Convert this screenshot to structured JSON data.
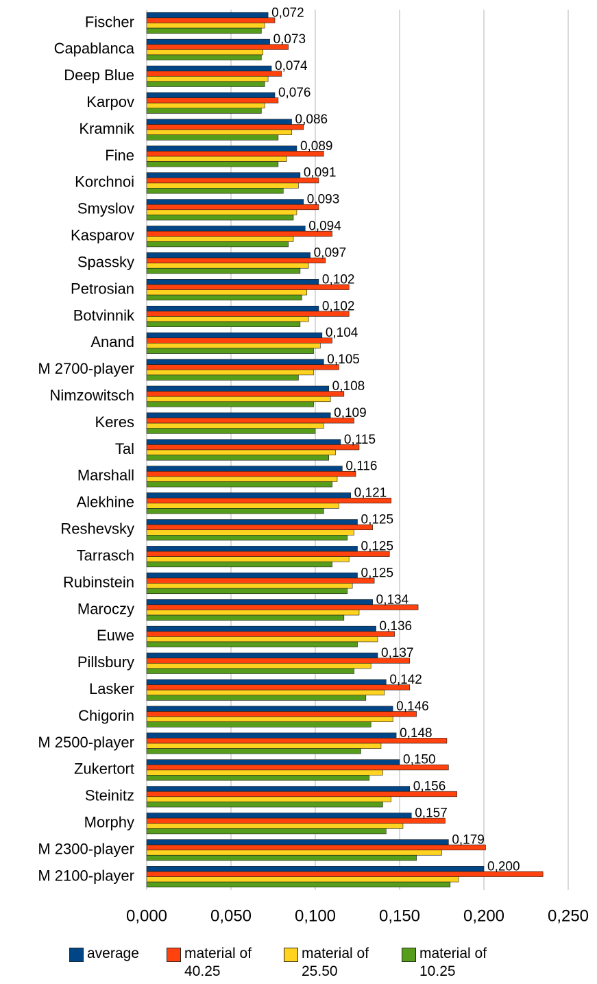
{
  "chart_data": {
    "type": "barh",
    "categories": [
      "Fischer",
      "Capablanca",
      "Deep Blue",
      "Karpov",
      "Kramnik",
      "Fine",
      "Korchnoi",
      "Smyslov",
      "Kasparov",
      "Spassky",
      "Petrosian",
      "Botvinnik",
      "Anand",
      "M 2700-player",
      "Nimzowitsch",
      "Keres",
      "Tal",
      "Marshall",
      "Alekhine",
      "Reshevsky",
      "Tarrasch",
      "Rubinstein",
      "Maroczy",
      "Euwe",
      "Pillsbury",
      "Lasker",
      "Chigorin",
      "M 2500-player",
      "Zukertort",
      "Steinitz",
      "Morphy",
      "M 2300-player",
      "M 2100-player"
    ],
    "series": [
      {
        "name": "average",
        "color": "#004586",
        "values": [
          0.072,
          0.073,
          0.074,
          0.076,
          0.086,
          0.089,
          0.091,
          0.093,
          0.094,
          0.097,
          0.102,
          0.102,
          0.104,
          0.105,
          0.108,
          0.109,
          0.115,
          0.116,
          0.121,
          0.125,
          0.125,
          0.125,
          0.134,
          0.136,
          0.137,
          0.142,
          0.146,
          0.148,
          0.15,
          0.156,
          0.157,
          0.179,
          0.2
        ],
        "value_labels": [
          "0,072",
          "0,073",
          "0,074",
          "0,076",
          "0,086",
          "0,089",
          "0,091",
          "0,093",
          "0,094",
          "0,097",
          "0,102",
          "0,102",
          "0,104",
          "0,105",
          "0,108",
          "0,109",
          "0,115",
          "0,116",
          "0,121",
          "0,125",
          "0,125",
          "0,125",
          "0,134",
          "0,136",
          "0,137",
          "0,142",
          "0,146",
          "0,148",
          "0,150",
          "0,156",
          "0,157",
          "0,179",
          "0,200"
        ]
      },
      {
        "name": "material of 40.25",
        "color": "#ff420e",
        "values": [
          0.076,
          0.084,
          0.08,
          0.078,
          0.093,
          0.105,
          0.102,
          0.102,
          0.11,
          0.106,
          0.12,
          0.12,
          0.11,
          0.114,
          0.117,
          0.123,
          0.126,
          0.124,
          0.145,
          0.134,
          0.144,
          0.135,
          0.161,
          0.147,
          0.156,
          0.156,
          0.16,
          0.178,
          0.179,
          0.184,
          0.177,
          0.201,
          0.235
        ]
      },
      {
        "name": "material of 25.50",
        "color": "#ffd320",
        "values": [
          0.07,
          0.069,
          0.072,
          0.07,
          0.086,
          0.083,
          0.09,
          0.089,
          0.087,
          0.096,
          0.095,
          0.096,
          0.103,
          0.099,
          0.109,
          0.105,
          0.112,
          0.113,
          0.114,
          0.123,
          0.12,
          0.122,
          0.126,
          0.137,
          0.133,
          0.141,
          0.146,
          0.139,
          0.14,
          0.145,
          0.152,
          0.175,
          0.185
        ]
      },
      {
        "name": "material of 10.25",
        "color": "#579d1c",
        "values": [
          0.068,
          0.068,
          0.07,
          0.068,
          0.078,
          0.078,
          0.081,
          0.087,
          0.084,
          0.091,
          0.092,
          0.091,
          0.099,
          0.09,
          0.099,
          0.1,
          0.108,
          0.11,
          0.105,
          0.119,
          0.11,
          0.119,
          0.117,
          0.125,
          0.123,
          0.13,
          0.133,
          0.127,
          0.132,
          0.14,
          0.142,
          0.16,
          0.18
        ]
      }
    ],
    "xlim": [
      0,
      0.25
    ],
    "xticks": [
      {
        "value": 0,
        "label": "0,000"
      },
      {
        "value": 0.05,
        "label": "0,050"
      },
      {
        "value": 0.1,
        "label": "0,100"
      },
      {
        "value": 0.15,
        "label": "0,150"
      },
      {
        "value": 0.2,
        "label": "0,200"
      },
      {
        "value": 0.25,
        "label": "0,250"
      }
    ],
    "grid": true,
    "legend": "bottom"
  }
}
